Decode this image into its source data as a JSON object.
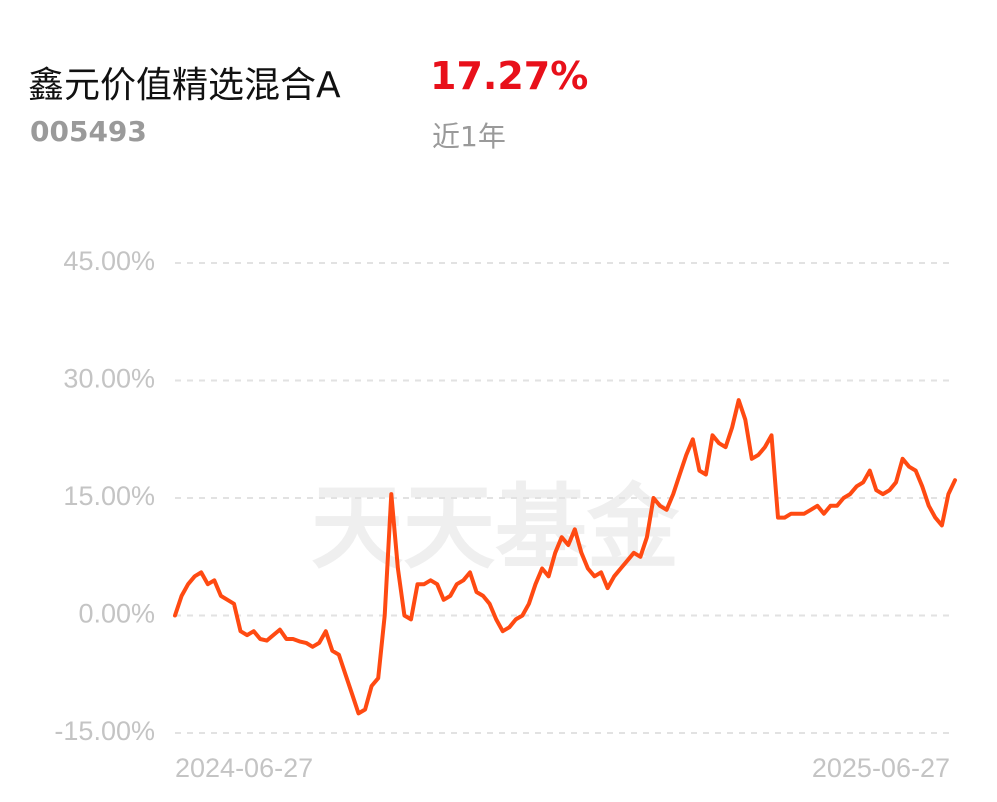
{
  "header": {
    "fund_name": "鑫元价值精选混合A",
    "return": "17.27%",
    "code": "005493",
    "period": "近1年"
  },
  "chart_data": {
    "type": "line",
    "watermark": "天天基金",
    "categories": [
      "2024-06-27",
      null,
      null,
      null,
      null,
      null,
      null,
      null,
      null,
      null,
      null,
      null,
      null,
      null,
      null,
      null,
      null,
      null,
      null,
      null,
      null,
      null,
      null,
      null,
      null,
      null,
      null,
      null,
      null,
      null,
      null,
      null,
      null,
      null,
      null,
      null,
      null,
      null,
      null,
      null,
      null,
      null,
      null,
      null,
      null,
      null,
      null,
      null,
      null,
      null,
      null,
      null,
      null,
      null,
      null,
      null,
      null,
      null,
      null,
      null,
      null,
      null,
      null,
      null,
      null,
      null,
      null,
      null,
      null,
      null,
      null,
      null,
      null,
      null,
      null,
      null,
      null,
      null,
      null,
      null,
      null,
      null,
      null,
      null,
      null,
      null,
      null,
      null,
      null,
      null,
      null,
      null,
      null,
      null,
      null,
      null,
      null,
      null,
      null,
      null,
      null,
      null,
      null,
      null,
      null,
      null,
      null,
      null,
      null,
      null,
      null,
      null,
      null,
      null,
      null,
      null,
      null,
      null,
      null,
      "2025-06-27"
    ],
    "series": [
      {
        "color": "#ff4a12",
        "values": [
          0,
          2.5,
          4.0,
          5.0,
          5.5,
          4.0,
          4.5,
          2.5,
          2.0,
          1.5,
          -2.0,
          -2.5,
          -2.0,
          -3.0,
          -3.2,
          -2.5,
          -1.8,
          -3.0,
          -3.0,
          -3.3,
          -3.5,
          -4.0,
          -3.5,
          -2.0,
          -4.5,
          -5.0,
          -7.5,
          -10.0,
          -12.5,
          -12.0,
          -9.0,
          -8.0,
          0.0,
          15.5,
          6.0,
          0.0,
          -0.5,
          4.0,
          4.0,
          4.5,
          4.0,
          2.0,
          2.5,
          4.0,
          4.5,
          5.5,
          3.0,
          2.5,
          1.5,
          -0.5,
          -2.0,
          -1.5,
          -0.5,
          0.0,
          1.5,
          4.0,
          6.0,
          5.0,
          8.0,
          10.0,
          9.0,
          11.0,
          8.0,
          6.0,
          5.0,
          5.5,
          3.5,
          5.0,
          6.0,
          7.0,
          8.0,
          7.5,
          10.0,
          15.0,
          14.0,
          13.5,
          15.5,
          18.0,
          20.5,
          22.5,
          18.5,
          18.0,
          23.0,
          22.0,
          21.5,
          24.0,
          27.5,
          25.0,
          20.0,
          20.5,
          21.5,
          23.0,
          12.5,
          12.5,
          13.0,
          13.0,
          13.0,
          13.5,
          14.0,
          13.0,
          14.0,
          14.0,
          15.0,
          15.5,
          16.5,
          17.0,
          18.5,
          16.0,
          15.5,
          16.0,
          17.0,
          20.0,
          19.0,
          18.5,
          16.5,
          14.0,
          12.5,
          11.5,
          15.5,
          17.27
        ]
      }
    ],
    "ylim": [
      -15,
      45
    ],
    "yticks": [
      {
        "value": -15,
        "label": "-15.00%"
      },
      {
        "value": 0,
        "label": "0.00%"
      },
      {
        "value": 15,
        "label": "15.00%"
      },
      {
        "value": 30,
        "label": "30.00%"
      },
      {
        "value": 45,
        "label": "45.00%"
      }
    ],
    "grid": true
  }
}
